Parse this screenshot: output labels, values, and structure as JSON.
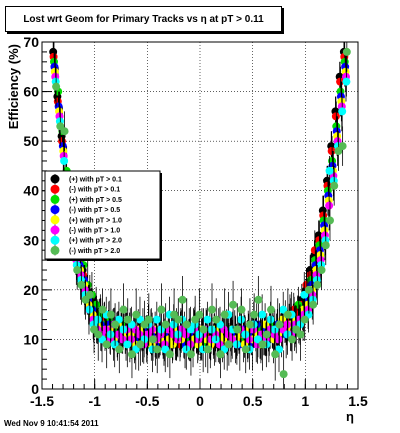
{
  "window": {
    "title": "Lost wrt Geom for Primary Tracks vs   η at pT > 0.11",
    "footer": "Wed Nov  9 10:41:54 2011"
  },
  "chart_data": {
    "type": "scatter",
    "title": "Lost wrt Geom for Primary Tracks vs   η at pT > 0.11",
    "xlabel": "η",
    "ylabel": "Efficiency (%)",
    "xlim": [
      -1.5,
      1.5
    ],
    "ylim": [
      0,
      70
    ],
    "xticks": [
      "-1.5",
      "-1",
      "-0.5",
      "0",
      "0.5",
      "1",
      "1.5"
    ],
    "yticks": [
      "0",
      "10",
      "20",
      "30",
      "40",
      "50",
      "60",
      "70"
    ],
    "grid": true,
    "legend_position": "middle-left",
    "x": [
      -1.38,
      -1.34,
      -1.3,
      -1.26,
      -1.22,
      -1.18,
      -1.14,
      -1.1,
      -1.06,
      -1.02,
      -0.98,
      -0.94,
      -0.9,
      -0.86,
      -0.82,
      -0.78,
      -0.74,
      -0.7,
      -0.66,
      -0.62,
      -0.58,
      -0.54,
      -0.5,
      -0.46,
      -0.42,
      -0.38,
      -0.34,
      -0.3,
      -0.26,
      -0.22,
      -0.18,
      -0.14,
      -0.1,
      -0.06,
      -0.02,
      0.02,
      0.06,
      0.1,
      0.14,
      0.18,
      0.22,
      0.26,
      0.3,
      0.34,
      0.38,
      0.42,
      0.46,
      0.5,
      0.54,
      0.58,
      0.62,
      0.66,
      0.7,
      0.74,
      0.78,
      0.82,
      0.86,
      0.9,
      0.94,
      0.98,
      1.02,
      1.06,
      1.1,
      1.14,
      1.18,
      1.22,
      1.26,
      1.3,
      1.34,
      1.38
    ],
    "series": [
      {
        "name": "(+) with pT > 0.1",
        "color": "#000000",
        "values": [
          68,
          59,
          51,
          43,
          36,
          30,
          27,
          24,
          20,
          18,
          16,
          15,
          14,
          13,
          12,
          12,
          11,
          12,
          11,
          10,
          11,
          10,
          12,
          11,
          10,
          9,
          10,
          11,
          10,
          9,
          10,
          9,
          10,
          11,
          10,
          9,
          10,
          11,
          10,
          9,
          10,
          11,
          12,
          10,
          11,
          10,
          11,
          10,
          12,
          11,
          10,
          12,
          11,
          12,
          13,
          12,
          14,
          15,
          16,
          18,
          20,
          24,
          27,
          31,
          36,
          42,
          49,
          56,
          63,
          68
        ]
      },
      {
        "name": "(-) with pT > 0.1",
        "color": "#ff0000",
        "values": [
          67,
          58,
          50,
          42,
          35,
          29,
          26,
          23,
          19,
          17,
          15,
          14,
          14,
          12,
          11,
          12,
          12,
          10,
          12,
          11,
          10,
          11,
          11,
          10,
          11,
          10,
          9,
          10,
          11,
          10,
          9,
          10,
          9,
          10,
          11,
          10,
          11,
          10,
          9,
          10,
          11,
          10,
          11,
          12,
          10,
          11,
          10,
          12,
          11,
          10,
          12,
          11,
          12,
          11,
          13,
          14,
          13,
          16,
          15,
          17,
          21,
          23,
          28,
          30,
          35,
          41,
          48,
          55,
          62,
          67
        ]
      },
      {
        "name": "(+) with pT > 0.5",
        "color": "#00dd00",
        "values": [
          66,
          60,
          52,
          44,
          37,
          31,
          28,
          25,
          21,
          19,
          17,
          15,
          13,
          14,
          12,
          11,
          13,
          12,
          10,
          11,
          12,
          10,
          9,
          12,
          11,
          10,
          11,
          9,
          12,
          10,
          11,
          12,
          10,
          9,
          11,
          10,
          9,
          12,
          11,
          10,
          9,
          12,
          10,
          11,
          12,
          10,
          9,
          11,
          10,
          12,
          11,
          10,
          13,
          12,
          11,
          13,
          15,
          14,
          17,
          16,
          19,
          22,
          26,
          29,
          34,
          40,
          46,
          53,
          60,
          66
        ]
      },
      {
        "name": "(-) with pT > 0.5",
        "color": "#0000ff",
        "values": [
          65,
          57,
          49,
          41,
          34,
          28,
          25,
          22,
          18,
          16,
          14,
          13,
          12,
          13,
          11,
          10,
          12,
          11,
          12,
          10,
          9,
          12,
          10,
          11,
          9,
          12,
          10,
          11,
          10,
          11,
          12,
          9,
          11,
          12,
          10,
          11,
          12,
          9,
          10,
          12,
          11,
          9,
          11,
          10,
          9,
          12,
          11,
          9,
          13,
          10,
          12,
          11,
          10,
          13,
          12,
          11,
          13,
          12,
          14,
          15,
          18,
          21,
          25,
          28,
          33,
          39,
          45,
          52,
          59,
          65
        ]
      },
      {
        "name": "(+) with pT > 1.0",
        "color": "#ffff00",
        "values": [
          64,
          56,
          48,
          40,
          33,
          27,
          24,
          21,
          17,
          15,
          13,
          12,
          11,
          12,
          10,
          13,
          11,
          10,
          11,
          9,
          12,
          11,
          10,
          9,
          12,
          10,
          12,
          10,
          9,
          12,
          10,
          11,
          12,
          10,
          9,
          12,
          10,
          9,
          12,
          11,
          10,
          9,
          12,
          10,
          11,
          9,
          12,
          10,
          11,
          9,
          13,
          12,
          10,
          11,
          14,
          12,
          13,
          14,
          13,
          16,
          17,
          20,
          24,
          27,
          32,
          38,
          44,
          51,
          58,
          64
        ]
      },
      {
        "name": "(-) with pT > 1.0",
        "color": "#ff00ff",
        "values": [
          63,
          55,
          47,
          39,
          32,
          26,
          23,
          20,
          16,
          14,
          12,
          11,
          12,
          10,
          13,
          11,
          10,
          12,
          10,
          12,
          11,
          9,
          11,
          12,
          10,
          11,
          9,
          12,
          11,
          10,
          12,
          11,
          9,
          12,
          10,
          11,
          12,
          10,
          11,
          9,
          12,
          11,
          10,
          9,
          12,
          11,
          10,
          12,
          9,
          11,
          10,
          12,
          11,
          10,
          12,
          13,
          11,
          13,
          14,
          15,
          16,
          19,
          23,
          26,
          31,
          37,
          43,
          50,
          57,
          63
        ]
      },
      {
        "name": "(+) with pT > 2.0",
        "color": "#00ffff",
        "values": [
          62,
          54,
          46,
          38,
          31,
          25,
          22,
          19,
          16,
          13,
          14,
          10,
          15,
          11,
          9,
          14,
          12,
          9,
          13,
          8,
          14,
          10,
          13,
          8,
          14,
          12,
          8,
          15,
          13,
          11,
          14,
          8,
          12,
          13,
          11,
          8,
          14,
          12,
          10,
          13,
          8,
          15,
          12,
          9,
          14,
          11,
          8,
          13,
          10,
          15,
          9,
          14,
          12,
          8,
          16,
          11,
          15,
          12,
          13,
          19,
          15,
          18,
          22,
          25,
          30,
          44,
          42,
          49,
          56,
          62
        ]
      },
      {
        "name": "(-) with pT > 2.0",
        "color": "#55bb55",
        "values": [
          61,
          53,
          52,
          37,
          30,
          24,
          21,
          18,
          19,
          12,
          11,
          16,
          9,
          15,
          13,
          8,
          16,
          14,
          7,
          15,
          9,
          13,
          14,
          10,
          8,
          16,
          13,
          7,
          15,
          14,
          18,
          13,
          7,
          14,
          15,
          12,
          8,
          16,
          14,
          7,
          15,
          9,
          17,
          12,
          16,
          8,
          13,
          15,
          18,
          9,
          11,
          16,
          7,
          13,
          3,
          15,
          10,
          12,
          11,
          14,
          20,
          17,
          21,
          24,
          29,
          34,
          41,
          48,
          49,
          68
        ]
      }
    ]
  }
}
